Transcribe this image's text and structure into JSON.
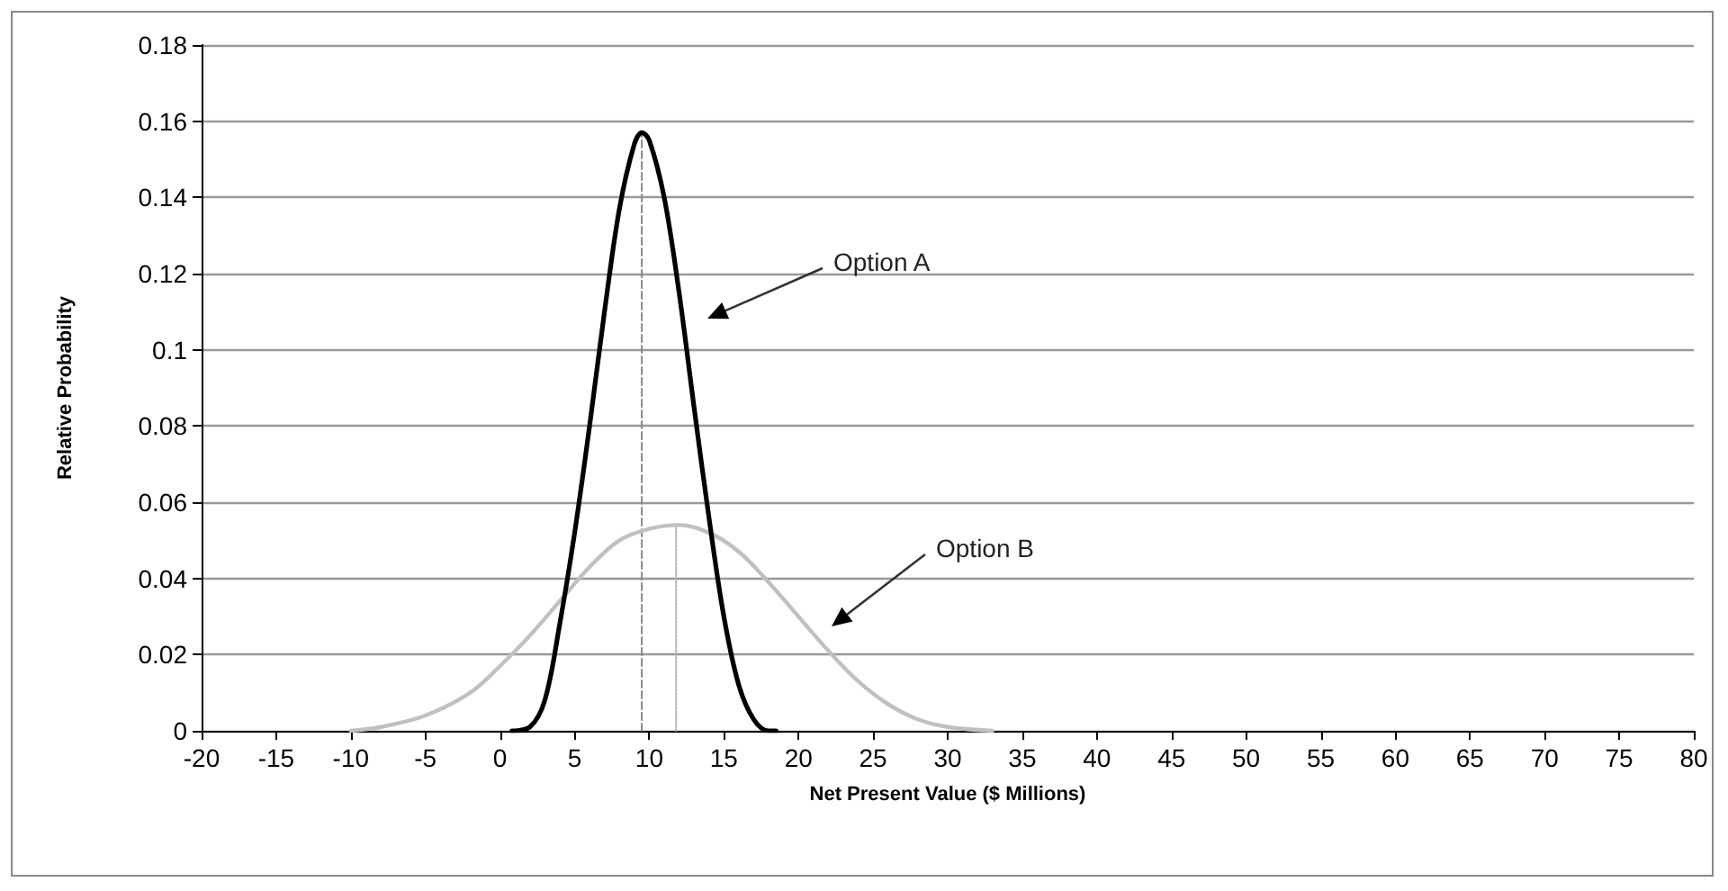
{
  "chart_data": {
    "type": "line",
    "xlabel": "Net Present Value ($ Millions)",
    "ylabel": "Relative Probability",
    "xlim": [
      -20,
      80
    ],
    "xticks": [
      -20,
      -15,
      -10,
      -5,
      0,
      5,
      10,
      15,
      20,
      25,
      30,
      35,
      40,
      45,
      50,
      55,
      60,
      65,
      70,
      75,
      80
    ],
    "ylim": [
      0,
      0.18
    ],
    "yticks": [
      0,
      0.02,
      0.04,
      0.06,
      0.08,
      0.1,
      0.12,
      0.14,
      0.16,
      0.18
    ],
    "grid": "y",
    "marker": "none",
    "series": [
      {
        "color": "#c0c0c0",
        "x": [
          -10,
          -8,
          -5,
          -2,
          0,
          2,
          4,
          6,
          8,
          10,
          12,
          14,
          16,
          18,
          20,
          22,
          24,
          26,
          28,
          30,
          33
        ],
        "values": [
          0,
          0.001,
          0.004,
          0.01,
          0.017,
          0.025,
          0.034,
          0.043,
          0.05,
          0.053,
          0.054,
          0.052,
          0.047,
          0.039,
          0.03,
          0.021,
          0.013,
          0.007,
          0.003,
          0.001,
          0
        ]
      },
      {
        "color": "#000000",
        "x": [
          0.8,
          2,
          3,
          4,
          5,
          6,
          7,
          8,
          9,
          9.5,
          10,
          11,
          12,
          13,
          14,
          15,
          16,
          17,
          18,
          18.5
        ],
        "values": [
          0,
          0.001,
          0.008,
          0.028,
          0.052,
          0.08,
          0.11,
          0.137,
          0.154,
          0.157,
          0.155,
          0.14,
          0.115,
          0.085,
          0.056,
          0.03,
          0.012,
          0.003,
          0,
          0
        ]
      },
      {
        "color": "#888888",
        "line_style": "dashed",
        "x": [
          9.5,
          9.5
        ],
        "values": [
          0,
          0.157
        ]
      },
      {
        "color": "#b0b0b0",
        "line_style": "dotted",
        "x": [
          11.8,
          11.8
        ],
        "values": [
          0,
          0.054
        ]
      }
    ],
    "annotations": [
      "Option A",
      "Option B"
    ]
  }
}
